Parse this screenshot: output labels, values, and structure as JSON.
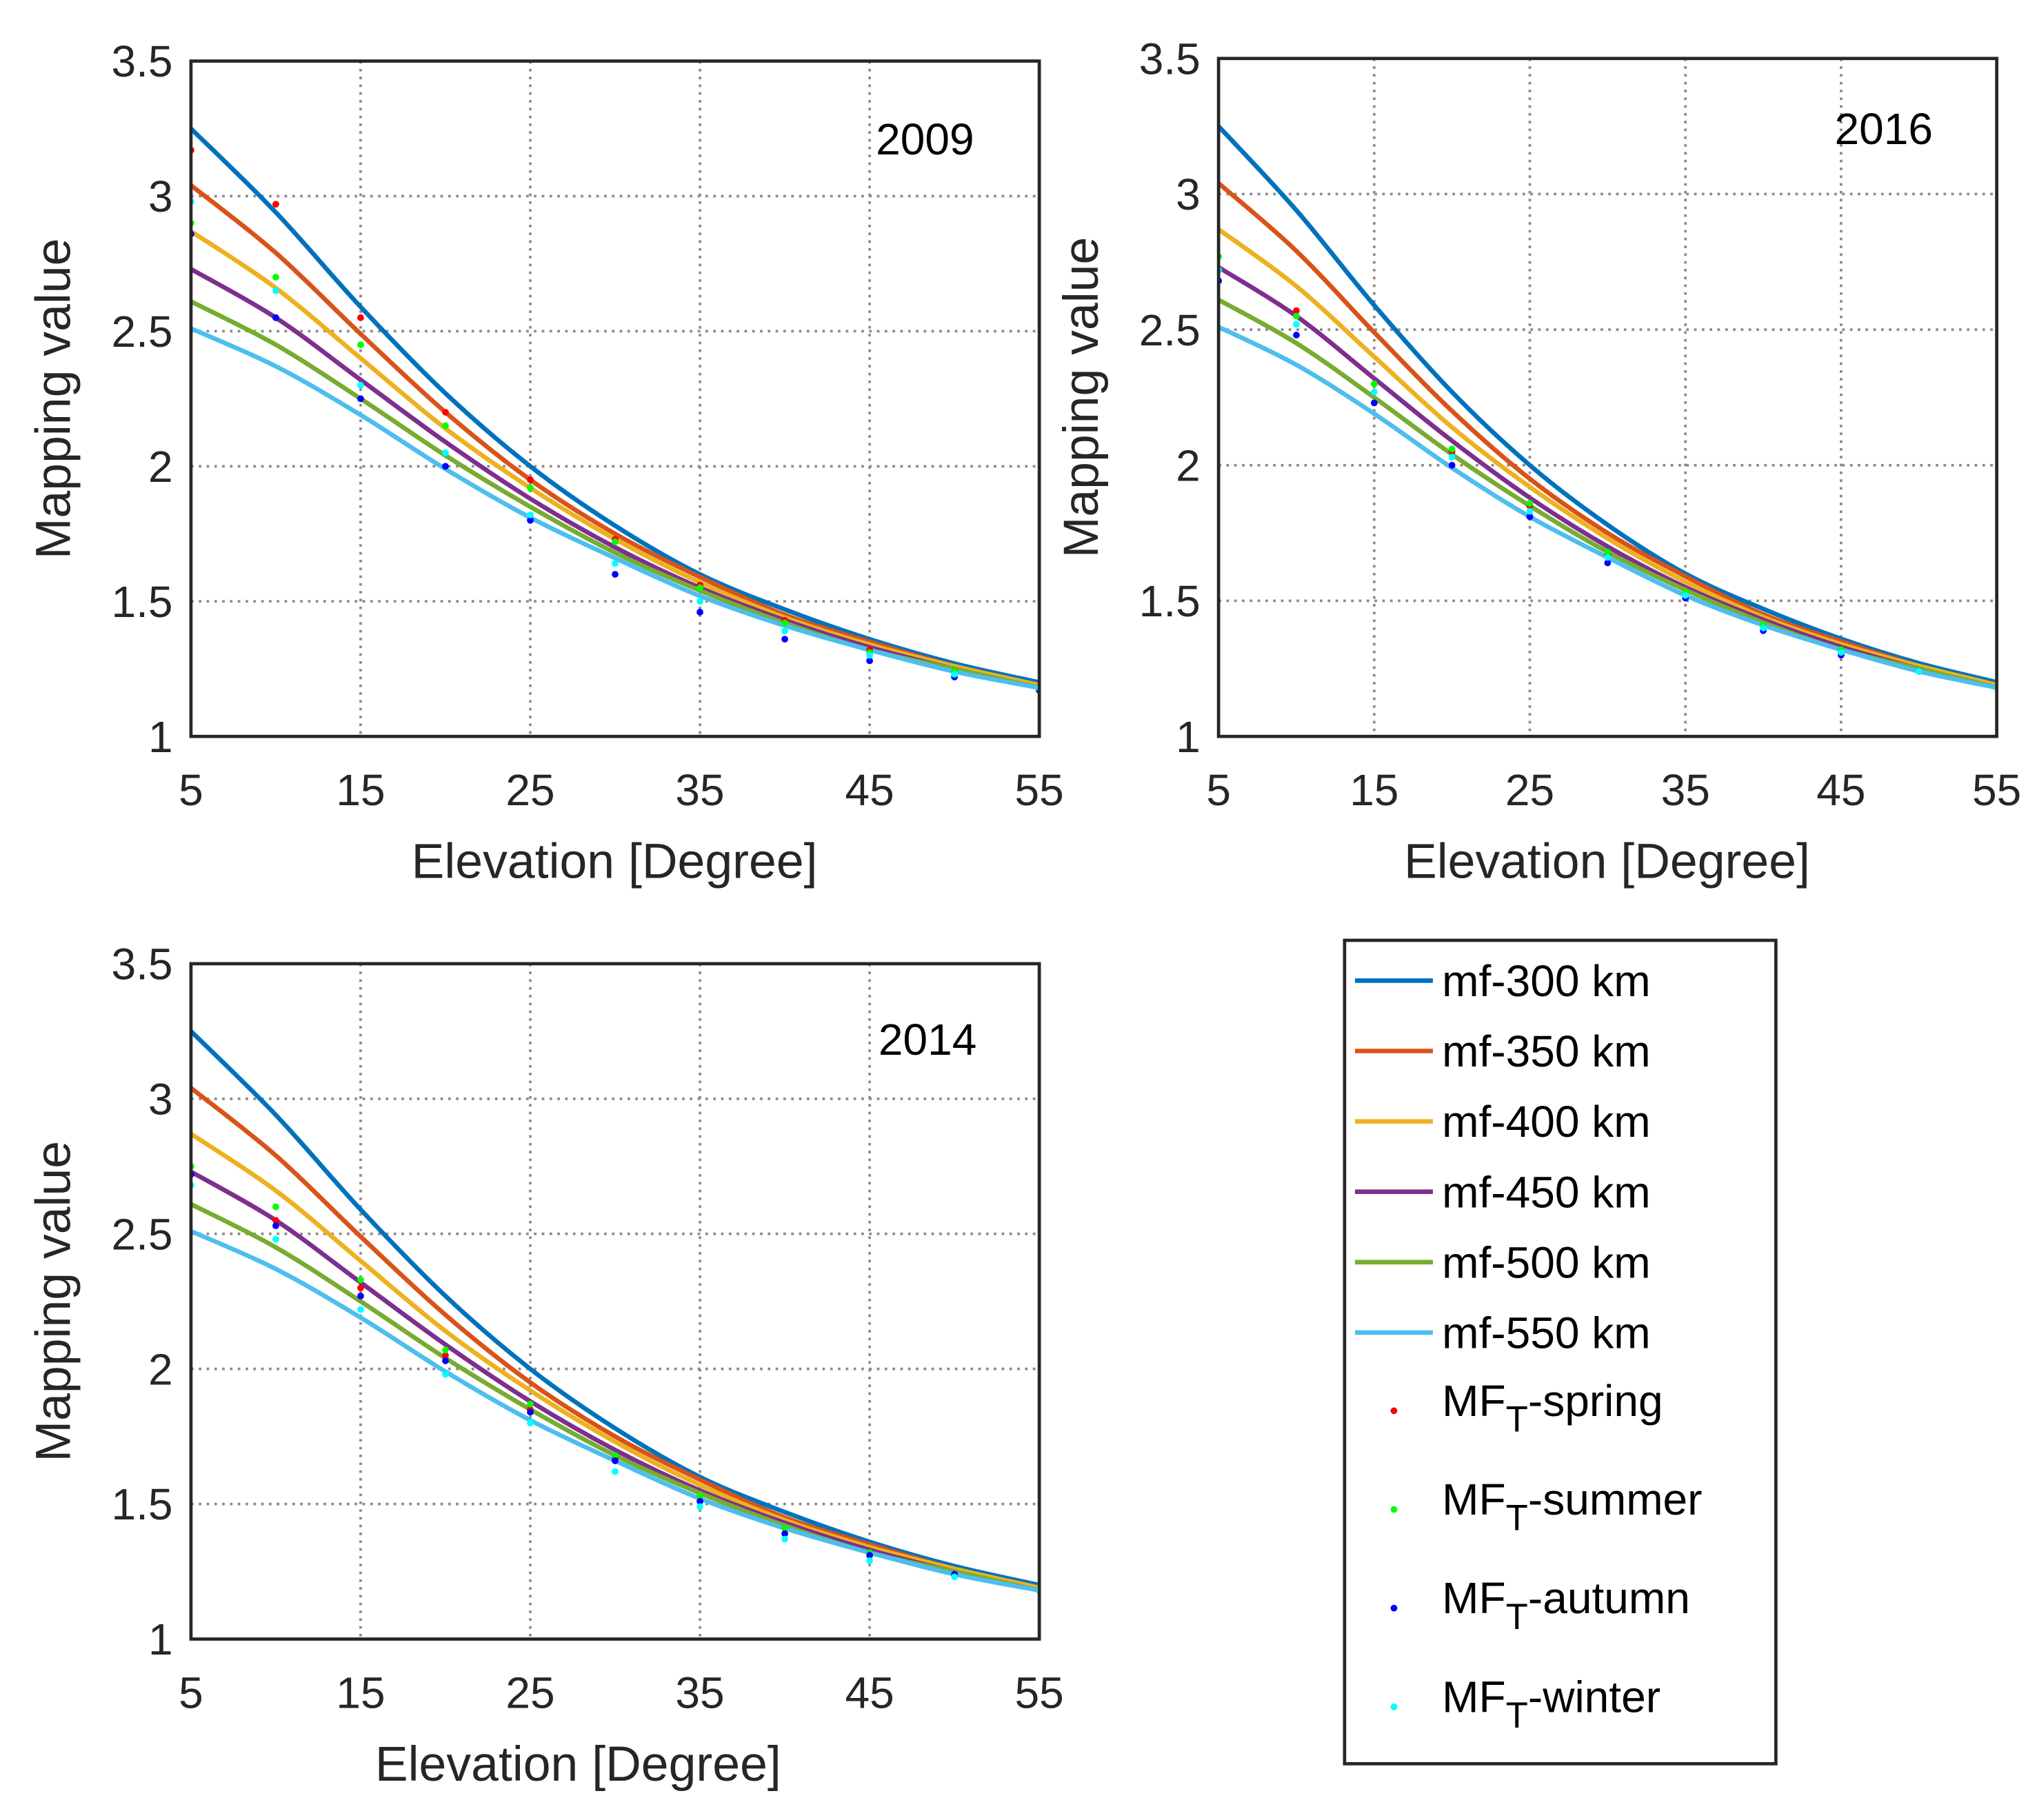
{
  "chart_data": [
    {
      "type": "line",
      "title": "2009",
      "xlabel": "Elevation [Degree]",
      "ylabel": "Mapping value",
      "xlim": [
        5,
        55
      ],
      "ylim": [
        1,
        3.5
      ],
      "xticks": [
        5,
        15,
        25,
        35,
        45,
        55
      ],
      "yticks": [
        1,
        1.5,
        2,
        2.5,
        3,
        3.5
      ],
      "grid": true,
      "legend": "outside lower right",
      "x": [
        5,
        10,
        15,
        20,
        25,
        30,
        35,
        40,
        45,
        50,
        55
      ],
      "series": [
        {
          "name": "mf-300 km",
          "mode": "line",
          "color": "#0072bd",
          "values": [
            3.25,
            2.94,
            2.59,
            2.27,
            2.0,
            1.78,
            1.6,
            1.47,
            1.36,
            1.27,
            1.2
          ]
        },
        {
          "name": "mf-350 km",
          "mode": "line",
          "color": "#d95319",
          "values": [
            3.04,
            2.79,
            2.49,
            2.2,
            1.95,
            1.75,
            1.59,
            1.45,
            1.35,
            1.26,
            1.19
          ]
        },
        {
          "name": "mf-400 km",
          "mode": "line",
          "color": "#edb120",
          "values": [
            2.87,
            2.66,
            2.4,
            2.14,
            1.92,
            1.73,
            1.57,
            1.44,
            1.34,
            1.26,
            1.19
          ]
        },
        {
          "name": "mf-450 km",
          "mode": "line",
          "color": "#7e2f8e",
          "values": [
            2.73,
            2.55,
            2.32,
            2.09,
            1.88,
            1.7,
            1.55,
            1.43,
            1.33,
            1.25,
            1.18
          ]
        },
        {
          "name": "mf-500 km",
          "mode": "line",
          "color": "#77ac30",
          "values": [
            2.61,
            2.45,
            2.25,
            2.04,
            1.85,
            1.68,
            1.54,
            1.42,
            1.32,
            1.25,
            1.18
          ]
        },
        {
          "name": "mf-550 km",
          "mode": "line",
          "color": "#4dbeee",
          "values": [
            2.51,
            2.37,
            2.19,
            1.99,
            1.81,
            1.66,
            1.52,
            1.41,
            1.32,
            1.24,
            1.18
          ]
        },
        {
          "name": "MFT-spring",
          "mode": "markers",
          "color": "#ff0000",
          "values": [
            3.17,
            2.97,
            2.55,
            2.2,
            1.95,
            1.73,
            1.56,
            1.43,
            1.32,
            1.24,
            1.18
          ]
        },
        {
          "name": "MFT-summer",
          "mode": "markers",
          "color": "#00ff00",
          "values": [
            2.9,
            2.7,
            2.45,
            2.15,
            1.92,
            1.72,
            1.55,
            1.42,
            1.31,
            1.24,
            1.18
          ]
        },
        {
          "name": "MFT-autumn",
          "mode": "markers",
          "color": "#0000ff",
          "values": [
            2.86,
            2.55,
            2.25,
            2.0,
            1.8,
            1.6,
            1.46,
            1.36,
            1.28,
            1.22,
            1.17
          ]
        },
        {
          "name": "MFT-winter",
          "mode": "markers",
          "color": "#00ffff",
          "values": [
            2.98,
            2.65,
            2.3,
            2.05,
            1.82,
            1.64,
            1.5,
            1.39,
            1.3,
            1.23,
            1.18
          ]
        }
      ]
    },
    {
      "type": "line",
      "title": "2016",
      "xlabel": "Elevation [Degree]",
      "ylabel": "Mapping value",
      "xlim": [
        5,
        55
      ],
      "ylim": [
        1,
        3.5
      ],
      "xticks": [
        5,
        15,
        25,
        35,
        45,
        55
      ],
      "yticks": [
        1,
        1.5,
        2,
        2.5,
        3,
        3.5
      ],
      "grid": true,
      "x": [
        5,
        10,
        15,
        20,
        25,
        30,
        35,
        40,
        45,
        50,
        55
      ],
      "series": [
        {
          "mode": "line",
          "color": "#0072bd",
          "values": [
            3.25,
            2.94,
            2.59,
            2.27,
            2.0,
            1.78,
            1.6,
            1.47,
            1.36,
            1.27,
            1.2
          ]
        },
        {
          "mode": "line",
          "color": "#d95319",
          "values": [
            3.04,
            2.79,
            2.49,
            2.2,
            1.95,
            1.75,
            1.59,
            1.45,
            1.35,
            1.26,
            1.19
          ]
        },
        {
          "mode": "line",
          "color": "#edb120",
          "values": [
            2.87,
            2.66,
            2.4,
            2.14,
            1.92,
            1.73,
            1.57,
            1.44,
            1.34,
            1.26,
            1.19
          ]
        },
        {
          "mode": "line",
          "color": "#7e2f8e",
          "values": [
            2.73,
            2.55,
            2.32,
            2.09,
            1.88,
            1.7,
            1.55,
            1.43,
            1.33,
            1.25,
            1.18
          ]
        },
        {
          "mode": "line",
          "color": "#77ac30",
          "values": [
            2.61,
            2.45,
            2.25,
            2.04,
            1.85,
            1.68,
            1.54,
            1.42,
            1.32,
            1.25,
            1.18
          ]
        },
        {
          "mode": "line",
          "color": "#4dbeee",
          "values": [
            2.51,
            2.37,
            2.19,
            1.99,
            1.81,
            1.66,
            1.52,
            1.41,
            1.32,
            1.24,
            1.18
          ]
        },
        {
          "mode": "markers",
          "color": "#ff0000",
          "values": [
            2.72,
            2.57,
            2.3,
            2.05,
            1.85,
            1.67,
            1.53,
            1.41,
            1.32,
            1.24,
            1.18
          ]
        },
        {
          "mode": "markers",
          "color": "#00ff00",
          "values": [
            2.77,
            2.55,
            2.3,
            2.06,
            1.86,
            1.68,
            1.53,
            1.41,
            1.32,
            1.24,
            1.18
          ]
        },
        {
          "mode": "markers",
          "color": "#0000ff",
          "values": [
            2.68,
            2.48,
            2.23,
            2.0,
            1.81,
            1.64,
            1.51,
            1.39,
            1.3,
            1.24,
            1.18
          ]
        },
        {
          "mode": "markers",
          "color": "#00ffff",
          "values": [
            2.72,
            2.52,
            2.27,
            2.03,
            1.83,
            1.66,
            1.52,
            1.4,
            1.31,
            1.24,
            1.18
          ]
        }
      ]
    },
    {
      "type": "line",
      "title": "2014",
      "xlabel": "Elevation [Degree]",
      "ylabel": "Mapping value",
      "xlim": [
        5,
        55
      ],
      "ylim": [
        1,
        3.5
      ],
      "xticks": [
        5,
        15,
        25,
        35,
        45,
        55
      ],
      "yticks": [
        1,
        1.5,
        2,
        2.5,
        3,
        3.5
      ],
      "grid": true,
      "x": [
        5,
        10,
        15,
        20,
        25,
        30,
        35,
        40,
        45,
        50,
        55
      ],
      "series": [
        {
          "mode": "line",
          "color": "#0072bd",
          "values": [
            3.25,
            2.94,
            2.59,
            2.27,
            2.0,
            1.78,
            1.6,
            1.47,
            1.36,
            1.27,
            1.2
          ]
        },
        {
          "mode": "line",
          "color": "#d95319",
          "values": [
            3.04,
            2.79,
            2.49,
            2.2,
            1.95,
            1.75,
            1.59,
            1.45,
            1.35,
            1.26,
            1.19
          ]
        },
        {
          "mode": "line",
          "color": "#edb120",
          "values": [
            2.87,
            2.66,
            2.4,
            2.14,
            1.92,
            1.73,
            1.57,
            1.44,
            1.34,
            1.26,
            1.19
          ]
        },
        {
          "mode": "line",
          "color": "#7e2f8e",
          "values": [
            2.73,
            2.55,
            2.32,
            2.09,
            1.88,
            1.7,
            1.55,
            1.43,
            1.33,
            1.25,
            1.18
          ]
        },
        {
          "mode": "line",
          "color": "#77ac30",
          "values": [
            2.61,
            2.45,
            2.25,
            2.04,
            1.85,
            1.68,
            1.54,
            1.42,
            1.32,
            1.25,
            1.18
          ]
        },
        {
          "mode": "line",
          "color": "#4dbeee",
          "values": [
            2.51,
            2.37,
            2.19,
            1.99,
            1.81,
            1.66,
            1.52,
            1.41,
            1.32,
            1.24,
            1.18
          ]
        },
        {
          "mode": "markers",
          "color": "#ff0000",
          "values": [
            2.72,
            2.55,
            2.3,
            2.05,
            1.85,
            1.67,
            1.53,
            1.41,
            1.32,
            1.24,
            1.18
          ]
        },
        {
          "mode": "markers",
          "color": "#00ff00",
          "values": [
            2.75,
            2.6,
            2.33,
            2.07,
            1.87,
            1.68,
            1.53,
            1.41,
            1.32,
            1.24,
            1.18
          ]
        },
        {
          "mode": "markers",
          "color": "#0000ff",
          "values": [
            2.72,
            2.53,
            2.27,
            2.03,
            1.84,
            1.66,
            1.51,
            1.39,
            1.31,
            1.24,
            1.18
          ]
        },
        {
          "mode": "markers",
          "color": "#00ffff",
          "values": [
            2.68,
            2.48,
            2.22,
            1.98,
            1.8,
            1.62,
            1.49,
            1.37,
            1.29,
            1.23,
            1.18
          ]
        }
      ]
    }
  ]
}
